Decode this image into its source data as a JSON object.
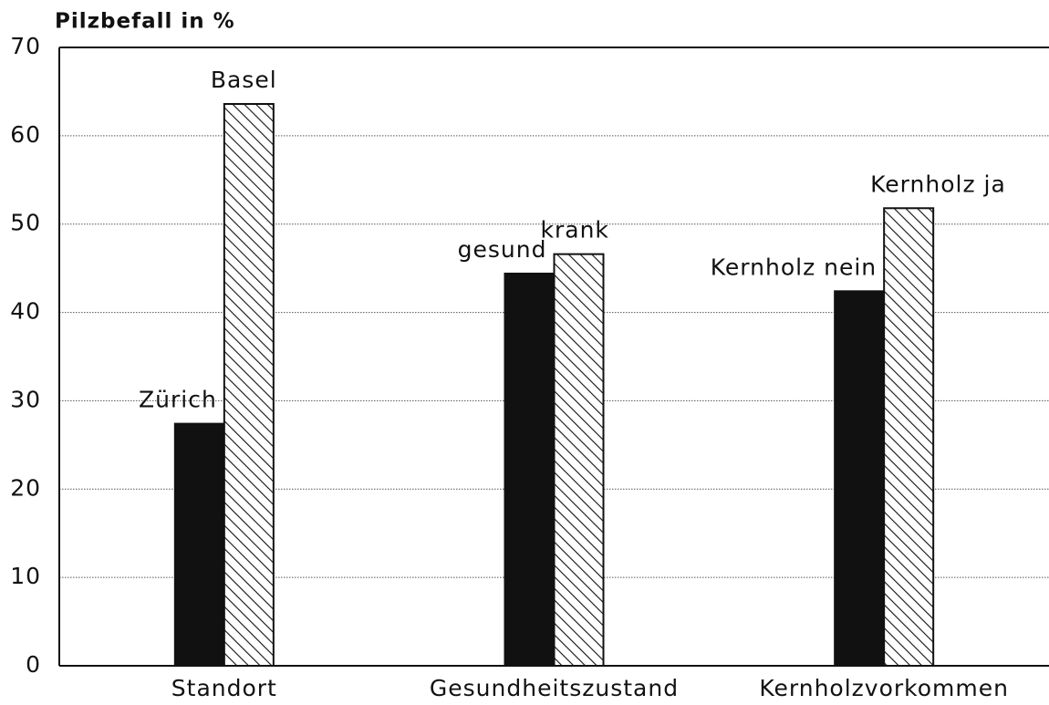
{
  "chart_data": {
    "type": "bar",
    "title": "Pilzbefall in %",
    "categories": [
      "Standort",
      "Gesundheitszustand",
      "Kernholzvorkommen"
    ],
    "series": [
      {
        "color": "#111111",
        "pattern": "solid",
        "labels": [
          "Zürich",
          "gesund",
          "Kernholz nein"
        ],
        "values": [
          27.4,
          44.4,
          42.4
        ]
      },
      {
        "color": "#111111",
        "pattern": "hatch",
        "labels": [
          "Basel",
          "krank",
          "Kernholz ja"
        ],
        "values": [
          63.6,
          46.6,
          51.8
        ]
      }
    ],
    "ylim": [
      0,
      70
    ],
    "yticks": [
      0,
      10,
      20,
      30,
      40,
      50,
      60,
      70
    ],
    "grid": true
  }
}
